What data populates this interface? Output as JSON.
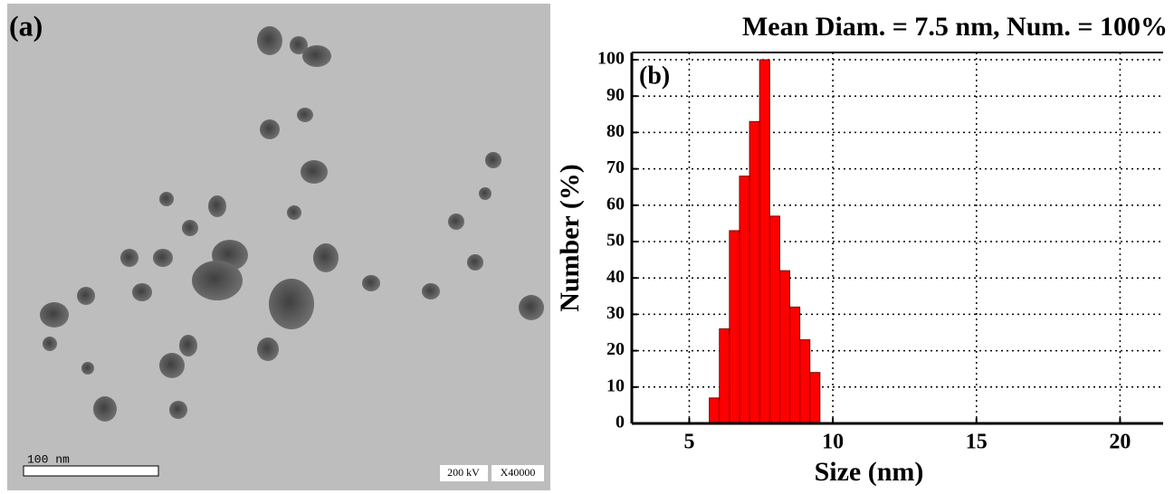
{
  "image": {
    "panel_label": "(a)",
    "scale_bar": "100 nm",
    "voltage": "200 kV",
    "magnification": "X40000"
  },
  "chart_data": {
    "type": "histogram",
    "title": "Mean Diam. = 7.5 nm, Num. = 100%",
    "panel_label": "(b)",
    "x_label": "Size (nm)",
    "y_label": "Number (%)",
    "bins": [
      5.7,
      6.05,
      6.4,
      6.75,
      7.1,
      7.45,
      7.8,
      8.15,
      8.5,
      8.85,
      9.2,
      9.55
    ],
    "values": [
      7,
      26,
      53,
      68,
      83,
      100,
      57,
      42,
      32,
      23,
      14
    ],
    "color": "#ff0000",
    "xlim": [
      3,
      21.5
    ],
    "ylim": [
      0,
      102
    ],
    "xticks": [
      5,
      10,
      15,
      20
    ],
    "yticks": [
      0,
      10,
      20,
      30,
      40,
      50,
      60,
      70,
      80,
      90,
      100
    ],
    "grid": true
  }
}
